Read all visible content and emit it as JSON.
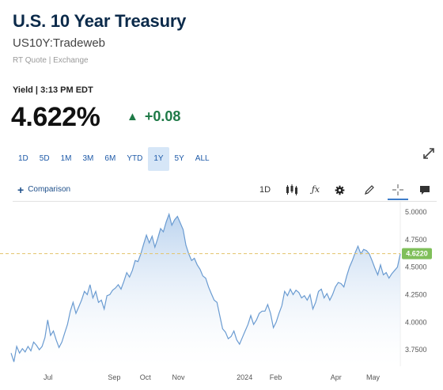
{
  "header": {
    "title": "U.S. 10 Year Treasury",
    "symbol": "US10Y:Tradeweb",
    "quote_source": "RT Quote | Exchange",
    "yield_time": "Yield | 3:13 PM EDT",
    "price": "4.622%",
    "change": "+0.08",
    "change_arrow": "▲",
    "change_color": "#1f7a47"
  },
  "ranges": {
    "items": [
      "1D",
      "5D",
      "1M",
      "3M",
      "6M",
      "YTD",
      "1Y",
      "5Y",
      "ALL"
    ],
    "active": "1Y"
  },
  "toolbar": {
    "comparison_label": "Comparison",
    "interval_label": "1D",
    "icons": [
      "candlestick-icon",
      "fx-icon",
      "gear-icon",
      "pencil-icon",
      "crosshair-icon",
      "comment-icon"
    ]
  },
  "chart_data": {
    "type": "area",
    "title": "",
    "xlabel": "",
    "ylabel": "",
    "ylim": [
      3.6,
      5.05
    ],
    "yticks": [
      "5.0000",
      "4.7500",
      "4.5000",
      "4.2500",
      "4.0000",
      "3.7500"
    ],
    "xticks": [
      "Jul",
      "Sep",
      "Oct",
      "Nov",
      "2024",
      "Feb",
      "Apr",
      "May"
    ],
    "last_value_label": "4.6220",
    "reference_line": 4.622,
    "line_color": "#6a9bd1",
    "fill_color": "#c7dcf1",
    "series": [
      {
        "values": [
          3.72,
          3.64,
          3.78,
          3.72,
          3.76,
          3.73,
          3.78,
          3.74,
          3.82,
          3.79,
          3.75,
          3.78,
          3.86,
          4.02,
          3.88,
          3.92,
          3.84,
          3.77,
          3.82,
          3.9,
          3.98,
          4.1,
          4.18,
          4.08,
          4.14,
          4.2,
          4.28,
          4.25,
          4.34,
          4.22,
          4.28,
          4.18,
          4.2,
          4.12,
          4.24,
          4.25,
          4.29,
          4.31,
          4.34,
          4.3,
          4.37,
          4.45,
          4.41,
          4.47,
          4.56,
          4.55,
          4.62,
          4.71,
          4.79,
          4.72,
          4.78,
          4.68,
          4.76,
          4.85,
          4.82,
          4.91,
          4.98,
          4.88,
          4.93,
          4.96,
          4.9,
          4.84,
          4.7,
          4.62,
          4.56,
          4.58,
          4.52,
          4.48,
          4.42,
          4.4,
          4.32,
          4.26,
          4.2,
          4.18,
          4.06,
          3.94,
          3.91,
          3.85,
          3.87,
          3.92,
          3.84,
          3.8,
          3.86,
          3.92,
          3.98,
          4.06,
          3.98,
          4.02,
          4.08,
          4.1,
          4.1,
          4.16,
          4.08,
          3.95,
          4.0,
          4.08,
          4.15,
          4.28,
          4.24,
          4.3,
          4.25,
          4.29,
          4.27,
          4.22,
          4.24,
          4.2,
          4.25,
          4.12,
          4.18,
          4.28,
          4.3,
          4.22,
          4.26,
          4.2,
          4.25,
          4.32,
          4.36,
          4.35,
          4.32,
          4.42,
          4.5,
          4.56,
          4.63,
          4.69,
          4.62,
          4.66,
          4.65,
          4.62,
          4.56,
          4.49,
          4.43,
          4.52,
          4.43,
          4.45,
          4.4,
          4.44,
          4.47,
          4.5,
          4.62
        ]
      }
    ]
  }
}
